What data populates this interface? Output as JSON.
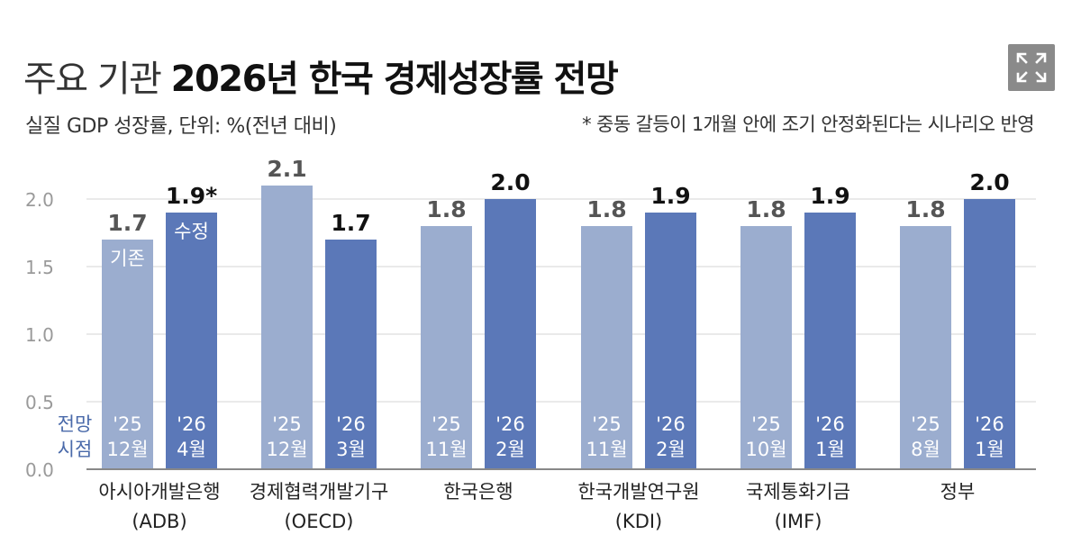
{
  "title": {
    "light": "주요 기관",
    "bold": "2026년 한국 경제성장률 전망"
  },
  "subtitle": "실질 GDP 성장률, 단위: %(전년 대비)",
  "footnote": "* 중동 갈등이 1개월 안에 조기 안정화된다는 시나리오 반영",
  "expand_icon": "expand-icon",
  "colors": {
    "previous": "#9badcf",
    "revised": "#5b78b8",
    "grid": "#e3e3e3",
    "axis_label": "#9a9a9a",
    "legend_label": "#4a6aaa"
  },
  "chart_data": {
    "type": "bar",
    "ylim": [
      0,
      2.0
    ],
    "yticks": [
      "0.0",
      "0.5",
      "1.0",
      "1.5",
      "2.0"
    ],
    "grid": true,
    "legend_axis_label": [
      "전망",
      "시점"
    ],
    "bar_inner_labels": {
      "previous": "기존",
      "revised": "수정"
    },
    "categories": [
      {
        "name": "아시아개발은행",
        "sub": "(ADB)"
      },
      {
        "name": "경제협력개발기구",
        "sub": "(OECD)"
      },
      {
        "name": "한국은행",
        "sub": ""
      },
      {
        "name": "한국개발연구원",
        "sub": "(KDI)"
      },
      {
        "name": "국제통화기금",
        "sub": "(IMF)"
      },
      {
        "name": "정부",
        "sub": ""
      }
    ],
    "series": [
      {
        "key": "previous",
        "values": [
          1.7,
          2.1,
          1.8,
          1.8,
          1.8,
          1.8
        ],
        "value_labels": [
          "1.7",
          "2.1",
          "1.8",
          "1.8",
          "1.8",
          "1.8"
        ],
        "dates": [
          [
            "'25",
            "12월"
          ],
          [
            "'25",
            "12월"
          ],
          [
            "'25",
            "11월"
          ],
          [
            "'25",
            "11월"
          ],
          [
            "'25",
            "10월"
          ],
          [
            "'25",
            "8월"
          ]
        ]
      },
      {
        "key": "revised",
        "values": [
          1.9,
          1.7,
          2.0,
          1.9,
          1.9,
          2.0
        ],
        "value_labels": [
          "1.9*",
          "1.7",
          "2.0",
          "1.9",
          "1.9",
          "2.0"
        ],
        "dates": [
          [
            "'26",
            "4월"
          ],
          [
            "'26",
            "3월"
          ],
          [
            "'26",
            "2월"
          ],
          [
            "'26",
            "2월"
          ],
          [
            "'26",
            "1월"
          ],
          [
            "'26",
            "1월"
          ]
        ]
      }
    ]
  }
}
